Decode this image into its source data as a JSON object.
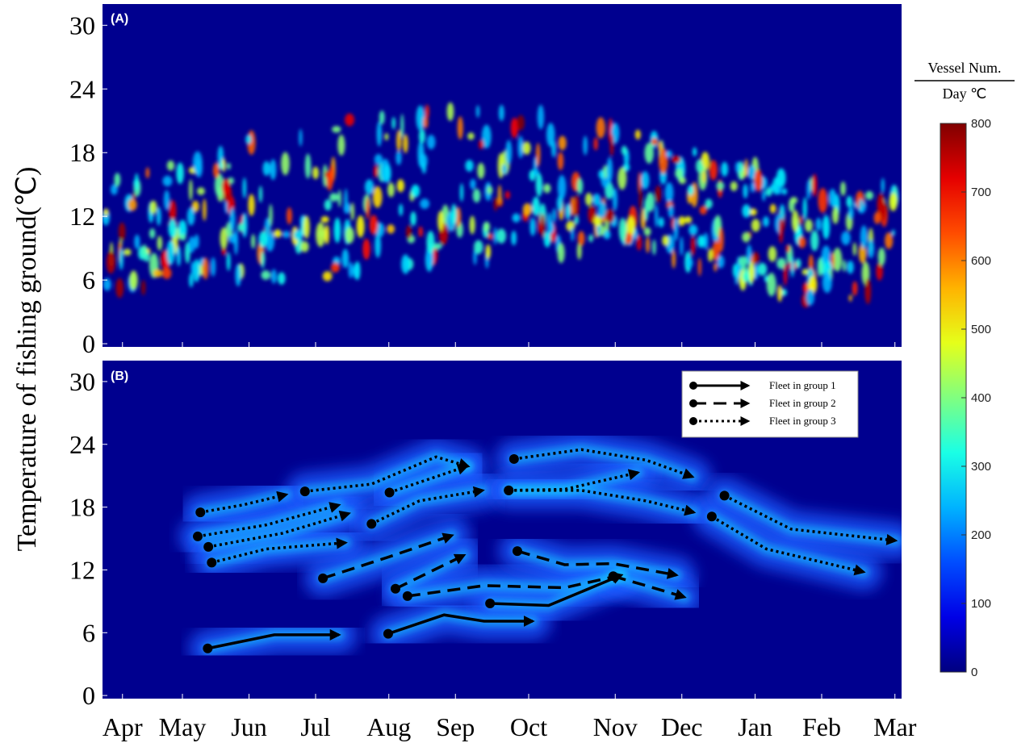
{
  "chart_data": {
    "type": "heatmap",
    "ylabel": "Temperature of fishing ground(℃)",
    "xlim": [
      0,
      12
    ],
    "xticks": [
      {
        "value": 0.3,
        "label": "Apr"
      },
      {
        "value": 1.2,
        "label": "May"
      },
      {
        "value": 2.2,
        "label": "Jun"
      },
      {
        "value": 3.2,
        "label": "Jul"
      },
      {
        "value": 4.3,
        "label": "Aug"
      },
      {
        "value": 5.3,
        "label": "Sep"
      },
      {
        "value": 6.4,
        "label": "Oct"
      },
      {
        "value": 7.7,
        "label": "Nov"
      },
      {
        "value": 8.7,
        "label": "Dec"
      },
      {
        "value": 9.8,
        "label": "Jan"
      },
      {
        "value": 10.8,
        "label": "Feb"
      },
      {
        "value": 11.9,
        "label": "Mar"
      }
    ],
    "ylim": [
      -0.3,
      32
    ],
    "yticks": [
      0,
      6,
      12,
      18,
      24,
      30
    ],
    "panels": [
      {
        "label": "(A)"
      },
      {
        "label": "(B)",
        "legend": "upper right",
        "series": [
          {
            "name": "Fleet in group 1",
            "color": "#000000",
            "style": "solid",
            "x": [
              1.58,
              2.58,
              3.55,
              null,
              4.29,
              5.13,
              5.73,
              6.46,
              null,
              5.82,
              6.7,
              7.79
            ],
            "values": [
              4.5,
              5.8,
              5.8,
              null,
              5.9,
              7.7,
              7.1,
              7.1,
              null,
              8.8,
              8.6,
              11.5
            ]
          },
          {
            "name": "Fleet in group 2",
            "color": "#000000",
            "style": "dashed",
            "x": [
              3.31,
              4.28,
              5.25,
              null,
              4.4,
              5.43,
              null,
              4.58,
              5.73,
              6.94,
              7.79,
              null,
              6.23,
              6.94,
              7.67,
              8.62,
              null,
              7.67,
              8.16,
              8.74
            ],
            "values": [
              11.2,
              13.2,
              15.3,
              null,
              10.2,
              13.4,
              null,
              9.5,
              10.5,
              10.3,
              11.5,
              null,
              13.8,
              12.5,
              12.6,
              11.5,
              null,
              11.4,
              10.5,
              9.4
            ]
          },
          {
            "name": "Fleet in group 3",
            "color": "#000000",
            "style": "dotted",
            "x": [
              1.47,
              2.1,
              2.76,
              null,
              1.43,
              2.46,
              3.55,
              null,
              1.59,
              2.7,
              3.7,
              null,
              1.64,
              2.46,
              3.65,
              null,
              3.04,
              4.04,
              5.01,
              5.49,
              null,
              4.31,
              5.47,
              null,
              4.04,
              4.76,
              5.71,
              null,
              6.18,
              7.19,
              8.16,
              8.86,
              null,
              6.1,
              6.94,
              8.04,
              null,
              6.1,
              7.19,
              8.16,
              8.88,
              null,
              9.15,
              9.97,
              11.43,
              null,
              9.34,
              10.34,
              11.91
            ],
            "values": [
              17.5,
              18.2,
              19.2,
              null,
              15.2,
              16.3,
              18.2,
              null,
              14.2,
              15.5,
              17.4,
              null,
              12.7,
              14.0,
              14.6,
              null,
              19.5,
              20.2,
              22.8,
              21.9,
              null,
              19.4,
              21.9,
              null,
              16.4,
              18.6,
              19.6,
              null,
              22.6,
              23.5,
              22.5,
              20.9,
              null,
              19.6,
              19.7,
              21.3,
              null,
              19.6,
              19.6,
              18.6,
              17.5,
              null,
              17.1,
              14.0,
              11.8,
              null,
              19.1,
              15.9,
              14.8
            ]
          }
        ]
      }
    ],
    "colorbar": {
      "title_top": "Vessel Num.",
      "title_bottom": "Day ℃",
      "clim": [
        0,
        800
      ],
      "ticks": [
        0,
        100,
        200,
        300,
        400,
        500,
        600,
        700,
        800
      ]
    }
  }
}
